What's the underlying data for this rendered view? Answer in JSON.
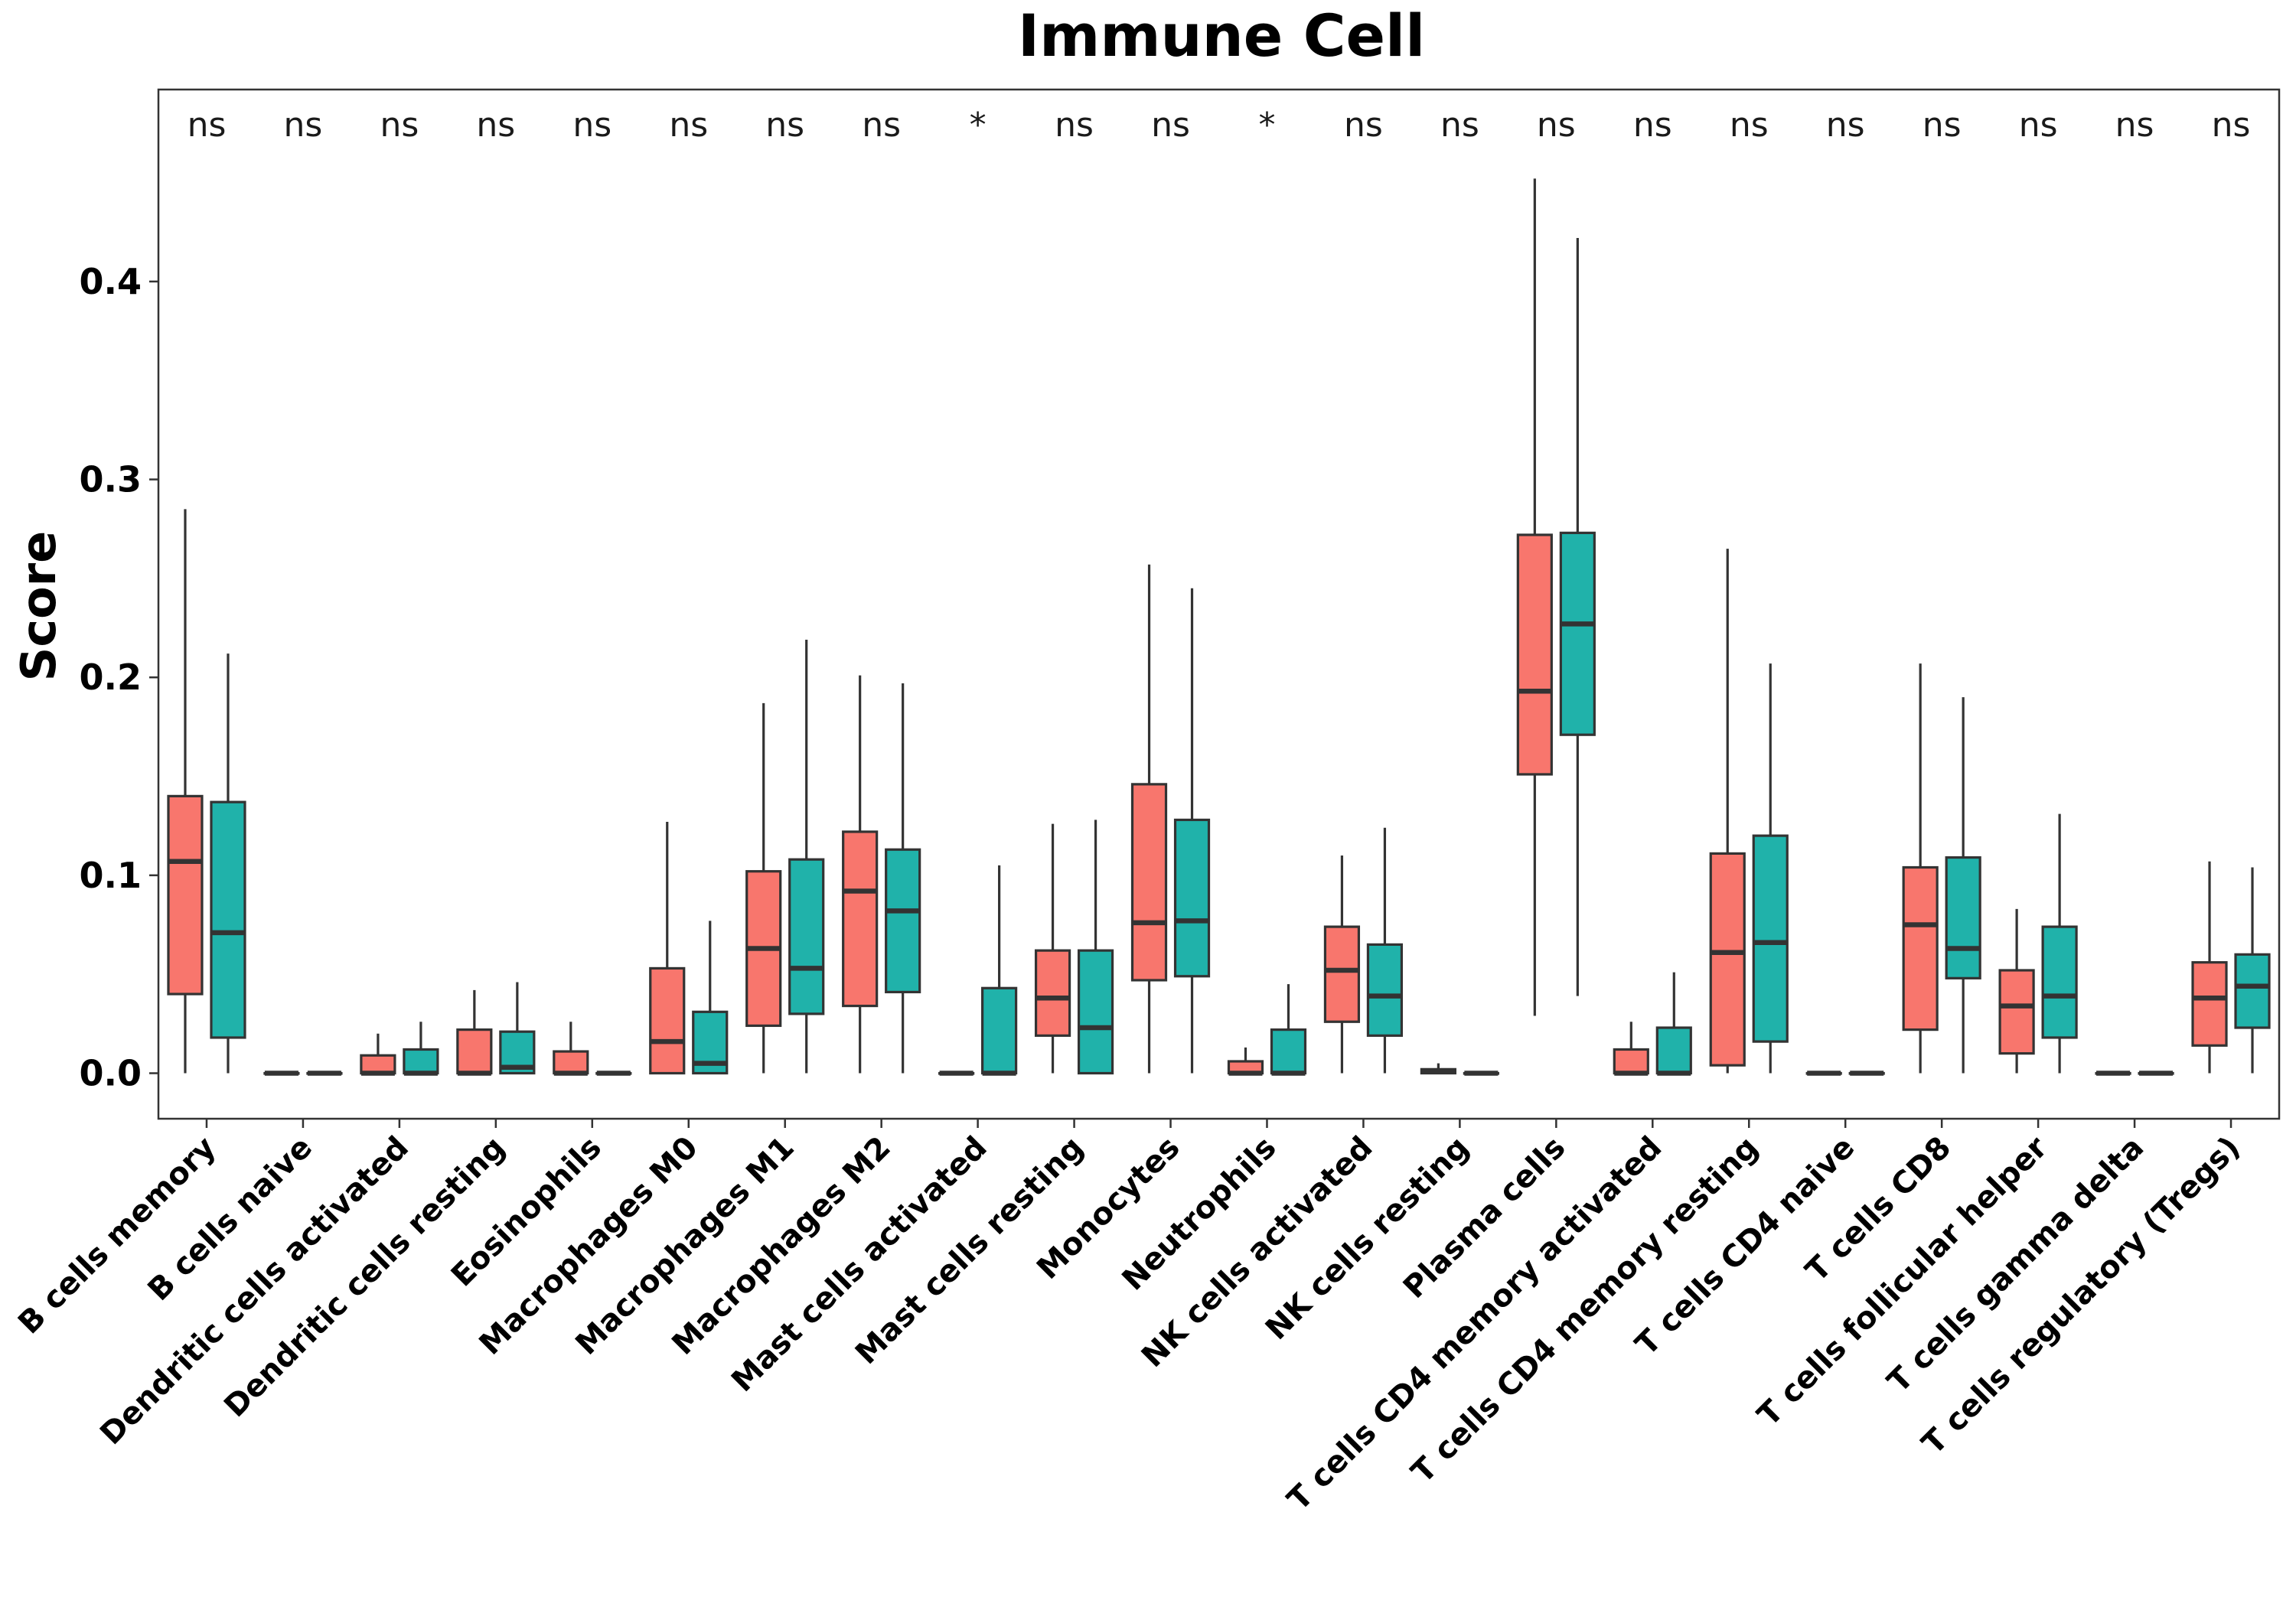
{
  "chart_data": {
    "type": "boxplot",
    "title": "Immune Cell",
    "xlabel": "",
    "ylabel": "Score",
    "ylim": [
      -0.023,
      0.497
    ],
    "yticks": [
      0.0,
      0.1,
      0.2,
      0.3,
      0.4
    ],
    "ytick_labels": [
      "0.0",
      "0.1",
      "0.2",
      "0.3",
      "0.4"
    ],
    "grid": false,
    "legend": "none",
    "colors": {
      "group1": "#F8766D",
      "group2": "#20B2AA",
      "outline": "#333333",
      "frame": "#333333"
    },
    "categories": [
      "B cells memory",
      "B cells naive",
      "Dendritic cells activated",
      "Dendritic cells resting",
      "Eosinophils",
      "Macrophages M0",
      "Macrophages M1",
      "Macrophages M2",
      "Mast cells activated",
      "Mast cells resting",
      "Monocytes",
      "Neutrophils",
      "NK cells activated",
      "NK cells resting",
      "Plasma cells",
      "T cells CD4 memory activated",
      "T cells CD4 memory resting",
      "T cells CD4 naive",
      "T cells CD8",
      "T cells follicular helper",
      "T cells gamma delta",
      "T cells regulatory (Tregs)"
    ],
    "significance": [
      "ns",
      "ns",
      "ns",
      "ns",
      "ns",
      "ns",
      "ns",
      "ns",
      "*",
      "ns",
      "ns",
      "*",
      "ns",
      "ns",
      "ns",
      "ns",
      "ns",
      "ns",
      "ns",
      "ns",
      "ns",
      "ns"
    ],
    "series": [
      {
        "color": "#F8766D",
        "boxes": [
          {
            "min": 0.0,
            "q1": 0.04,
            "median": 0.107,
            "q3": 0.14,
            "max": 0.285
          },
          {
            "min": 0.0,
            "q1": 0.0,
            "median": 0.0,
            "q3": 0.0,
            "max": 0.0
          },
          {
            "min": 0.0,
            "q1": 0.0,
            "median": 0.0,
            "q3": 0.009,
            "max": 0.02
          },
          {
            "min": 0.0,
            "q1": 0.0,
            "median": 0.0,
            "q3": 0.022,
            "max": 0.042
          },
          {
            "min": 0.0,
            "q1": 0.0,
            "median": 0.0,
            "q3": 0.011,
            "max": 0.026
          },
          {
            "min": 0.0,
            "q1": 0.0,
            "median": 0.016,
            "q3": 0.053,
            "max": 0.127
          },
          {
            "min": 0.0,
            "q1": 0.024,
            "median": 0.063,
            "q3": 0.102,
            "max": 0.187
          },
          {
            "min": 0.0,
            "q1": 0.034,
            "median": 0.092,
            "q3": 0.122,
            "max": 0.201
          },
          {
            "min": 0.0,
            "q1": 0.0,
            "median": 0.0,
            "q3": 0.0,
            "max": 0.0
          },
          {
            "min": 0.0,
            "q1": 0.019,
            "median": 0.038,
            "q3": 0.062,
            "max": 0.126
          },
          {
            "min": 0.0,
            "q1": 0.047,
            "median": 0.076,
            "q3": 0.146,
            "max": 0.257
          },
          {
            "min": 0.0,
            "q1": 0.0,
            "median": 0.0,
            "q3": 0.006,
            "max": 0.013
          },
          {
            "min": 0.0,
            "q1": 0.026,
            "median": 0.052,
            "q3": 0.074,
            "max": 0.11
          },
          {
            "min": 0.0,
            "q1": 0.0,
            "median": 0.001,
            "q3": 0.002,
            "max": 0.005
          },
          {
            "min": 0.029,
            "q1": 0.151,
            "median": 0.193,
            "q3": 0.272,
            "max": 0.452
          },
          {
            "min": 0.0,
            "q1": 0.0,
            "median": 0.0,
            "q3": 0.012,
            "max": 0.026
          },
          {
            "min": 0.0,
            "q1": 0.004,
            "median": 0.061,
            "q3": 0.111,
            "max": 0.265
          },
          {
            "min": 0.0,
            "q1": 0.0,
            "median": 0.0,
            "q3": 0.0,
            "max": 0.0
          },
          {
            "min": 0.0,
            "q1": 0.022,
            "median": 0.075,
            "q3": 0.104,
            "max": 0.207
          },
          {
            "min": 0.0,
            "q1": 0.01,
            "median": 0.034,
            "q3": 0.052,
            "max": 0.083
          },
          {
            "min": 0.0,
            "q1": 0.0,
            "median": 0.0,
            "q3": 0.0,
            "max": 0.0
          },
          {
            "min": 0.0,
            "q1": 0.014,
            "median": 0.038,
            "q3": 0.056,
            "max": 0.107
          }
        ]
      },
      {
        "color": "#20B2AA",
        "boxes": [
          {
            "min": 0.0,
            "q1": 0.018,
            "median": 0.071,
            "q3": 0.137,
            "max": 0.212
          },
          {
            "min": 0.0,
            "q1": 0.0,
            "median": 0.0,
            "q3": 0.0,
            "max": 0.0
          },
          {
            "min": 0.0,
            "q1": 0.0,
            "median": 0.0,
            "q3": 0.012,
            "max": 0.026
          },
          {
            "min": 0.0,
            "q1": 0.0,
            "median": 0.003,
            "q3": 0.021,
            "max": 0.046
          },
          {
            "min": 0.0,
            "q1": 0.0,
            "median": 0.0,
            "q3": 0.0,
            "max": 0.0
          },
          {
            "min": 0.0,
            "q1": 0.0,
            "median": 0.005,
            "q3": 0.031,
            "max": 0.077
          },
          {
            "min": 0.0,
            "q1": 0.03,
            "median": 0.053,
            "q3": 0.108,
            "max": 0.219
          },
          {
            "min": 0.0,
            "q1": 0.041,
            "median": 0.082,
            "q3": 0.113,
            "max": 0.197
          },
          {
            "min": 0.0,
            "q1": 0.0,
            "median": 0.0,
            "q3": 0.043,
            "max": 0.105
          },
          {
            "min": 0.0,
            "q1": 0.0,
            "median": 0.023,
            "q3": 0.062,
            "max": 0.128
          },
          {
            "min": 0.0,
            "q1": 0.049,
            "median": 0.077,
            "q3": 0.128,
            "max": 0.245
          },
          {
            "min": 0.0,
            "q1": 0.0,
            "median": 0.0,
            "q3": 0.022,
            "max": 0.045
          },
          {
            "min": 0.0,
            "q1": 0.019,
            "median": 0.039,
            "q3": 0.065,
            "max": 0.124
          },
          {
            "min": 0.0,
            "q1": 0.0,
            "median": 0.0,
            "q3": 0.0,
            "max": 0.0
          },
          {
            "min": 0.039,
            "q1": 0.171,
            "median": 0.227,
            "q3": 0.273,
            "max": 0.422
          },
          {
            "min": 0.0,
            "q1": 0.0,
            "median": 0.0,
            "q3": 0.023,
            "max": 0.051
          },
          {
            "min": 0.0,
            "q1": 0.016,
            "median": 0.066,
            "q3": 0.12,
            "max": 0.207
          },
          {
            "min": 0.0,
            "q1": 0.0,
            "median": 0.0,
            "q3": 0.0,
            "max": 0.0
          },
          {
            "min": 0.0,
            "q1": 0.048,
            "median": 0.063,
            "q3": 0.109,
            "max": 0.19
          },
          {
            "min": 0.0,
            "q1": 0.018,
            "median": 0.039,
            "q3": 0.074,
            "max": 0.131
          },
          {
            "min": 0.0,
            "q1": 0.0,
            "median": 0.0,
            "q3": 0.0,
            "max": 0.0
          },
          {
            "min": 0.0,
            "q1": 0.023,
            "median": 0.044,
            "q3": 0.06,
            "max": 0.104
          }
        ]
      }
    ]
  }
}
